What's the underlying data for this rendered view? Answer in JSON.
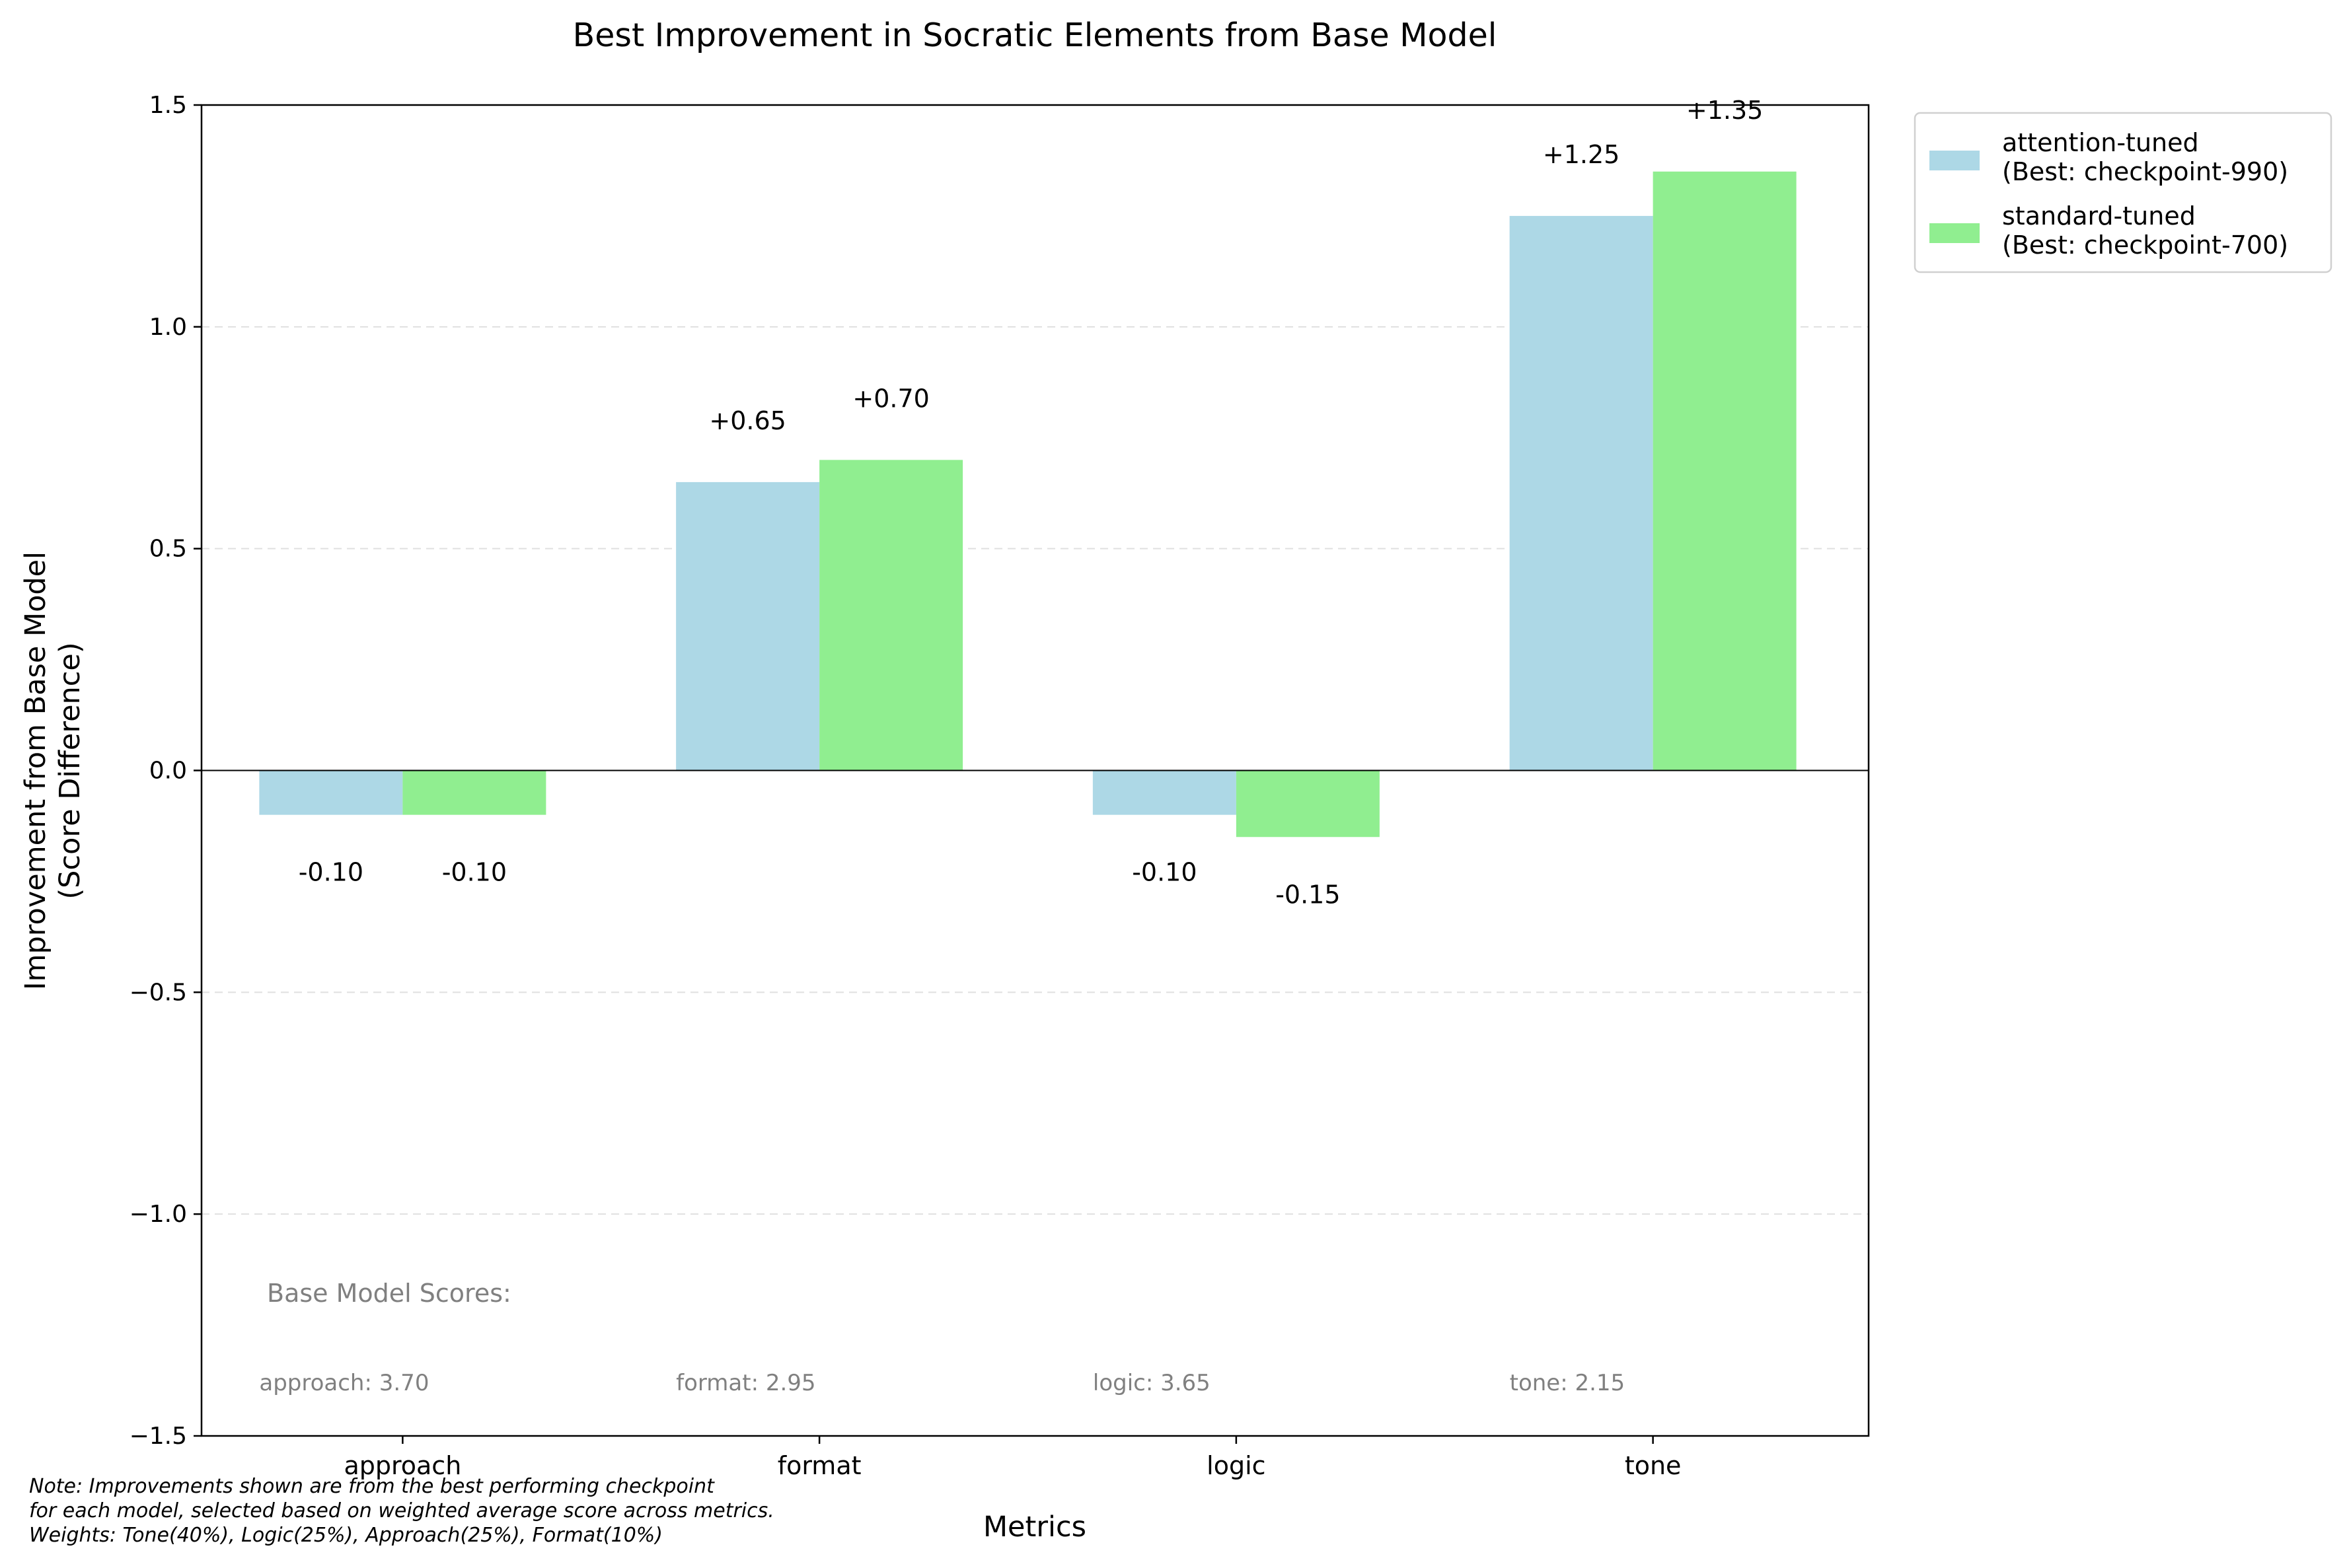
{
  "chart_data": {
    "type": "bar",
    "title": "Best Improvement in Socratic Elements from Base Model",
    "xlabel": "Metrics",
    "ylabel_line1": "Improvement from Base Model",
    "ylabel_line2": "(Score Difference)",
    "categories": [
      "approach",
      "format",
      "logic",
      "tone"
    ],
    "ylim": [
      -1.5,
      1.5
    ],
    "yticks": [
      -1.5,
      -1.0,
      -0.5,
      0.0,
      0.5,
      1.0,
      1.5
    ],
    "ytick_labels": [
      "−1.5",
      "−1.0",
      "−0.5",
      "0.0",
      "0.5",
      "1.0",
      "1.5"
    ],
    "grid": "horizontal dashed",
    "legend_position": "outside top-right",
    "series": [
      {
        "name_line1": "attention-tuned",
        "name_line2": "(Best: checkpoint-990)",
        "color": "#add8e6",
        "values": [
          -0.1,
          0.65,
          -0.1,
          1.25
        ],
        "labels": [
          "-0.10",
          "+0.65",
          "-0.10",
          "+1.25"
        ]
      },
      {
        "name_line1": "standard-tuned",
        "name_line2": "(Best: checkpoint-700)",
        "color": "#90ee90",
        "values": [
          -0.1,
          0.7,
          -0.15,
          1.35
        ],
        "labels": [
          "-0.10",
          "+0.70",
          "-0.15",
          "+1.35"
        ]
      }
    ],
    "base_scores_title": "Base Model Scores:",
    "base_scores": [
      "approach: 3.70",
      "format: 2.95",
      "logic: 3.65",
      "tone: 2.15"
    ],
    "note_lines": [
      "Note: Improvements shown are from the best performing checkpoint",
      "for each model, selected based on weighted average score across metrics.",
      "Weights: Tone(40%), Logic(25%), Approach(25%), Format(10%)"
    ]
  }
}
